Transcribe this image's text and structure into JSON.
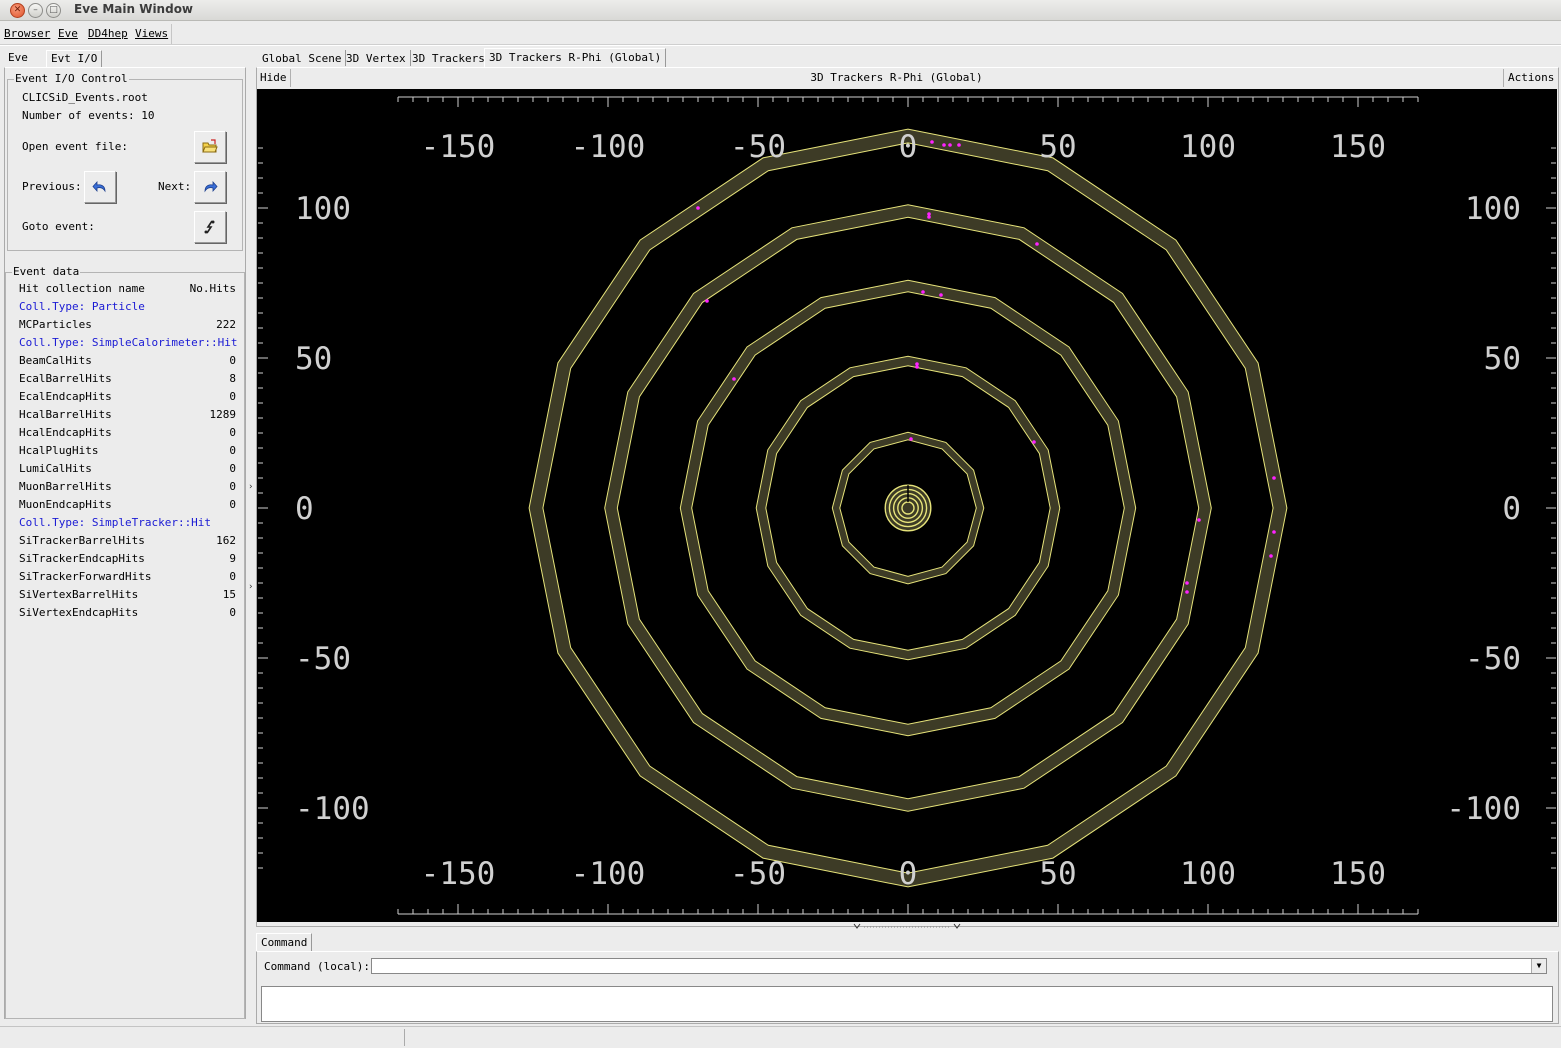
{
  "window": {
    "title": "Eve Main Window"
  },
  "menubar": {
    "items": [
      "Browser",
      "Eve",
      "DD4hep",
      "Views"
    ]
  },
  "left_tabs": [
    "Eve",
    "Evt I/O"
  ],
  "event_io": {
    "group_label": "Event I/O Control",
    "file_name": "CLICSiD_Events.root",
    "num_events": "Number of events: 10",
    "open_label": "Open event file:",
    "prev_label": "Previous:",
    "next_label": "Next:",
    "goto_label": "Goto event:"
  },
  "event_data": {
    "group_label": "Event data",
    "header_name": "Hit collection name",
    "header_count": "No.Hits",
    "rows": [
      {
        "name": "Coll.Type: Particle",
        "count": "",
        "type": "category"
      },
      {
        "name": "MCParticles",
        "count": "222",
        "type": "item"
      },
      {
        "name": "Coll.Type: SimpleCalorimeter::Hit",
        "count": "",
        "type": "category"
      },
      {
        "name": "BeamCalHits",
        "count": "0",
        "type": "item"
      },
      {
        "name": "EcalBarrelHits",
        "count": "8",
        "type": "item"
      },
      {
        "name": "EcalEndcapHits",
        "count": "0",
        "type": "item"
      },
      {
        "name": "HcalBarrelHits",
        "count": "1289",
        "type": "item"
      },
      {
        "name": "HcalEndcapHits",
        "count": "0",
        "type": "item"
      },
      {
        "name": "HcalPlugHits",
        "count": "0",
        "type": "item"
      },
      {
        "name": "LumiCalHits",
        "count": "0",
        "type": "item"
      },
      {
        "name": "MuonBarrelHits",
        "count": "0",
        "type": "item"
      },
      {
        "name": "MuonEndcapHits",
        "count": "0",
        "type": "item"
      },
      {
        "name": "Coll.Type: SimpleTracker::Hit",
        "count": "",
        "type": "category"
      },
      {
        "name": "SiTrackerBarrelHits",
        "count": "162",
        "type": "item"
      },
      {
        "name": "SiTrackerEndcapHits",
        "count": "9",
        "type": "item"
      },
      {
        "name": "SiTrackerForwardHits",
        "count": "0",
        "type": "item"
      },
      {
        "name": "SiVertexBarrelHits",
        "count": "15",
        "type": "item"
      },
      {
        "name": "SiVertexEndcapHits",
        "count": "0",
        "type": "item"
      }
    ]
  },
  "viewer_tabs": [
    "Global Scene",
    "3D Vertex",
    "3D Trackers",
    "3D Trackers R-Phi (Global)"
  ],
  "viewer": {
    "hide_label": "Hide",
    "title": "3D Trackers R-Phi (Global)",
    "actions_label": "Actions"
  },
  "axes": {
    "x_ticks": [
      "-150",
      "-100",
      "-50",
      "0",
      "50",
      "100",
      "150"
    ],
    "y_ticks": [
      "100",
      "50",
      "0",
      "-50",
      "-100"
    ]
  },
  "scene": {
    "background": "#000000",
    "layer_fill": "#3d3b26",
    "layer_edge": "#e6e37a",
    "hit_color": "#ff22ff",
    "axis_color": "#d0d0d0"
  },
  "command": {
    "tab_label": "Command",
    "label": "Command (local):",
    "value": ""
  }
}
